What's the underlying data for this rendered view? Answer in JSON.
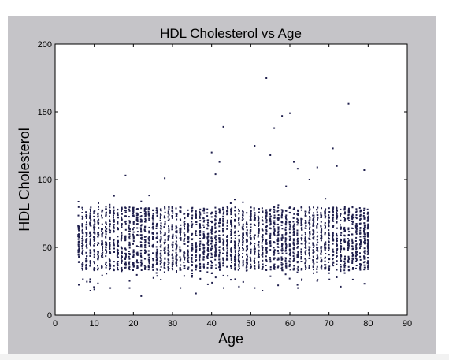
{
  "chart_data": {
    "type": "scatter",
    "title": "HDL Cholesterol vs Age",
    "xlabel": "Age",
    "ylabel": "HDL Cholesterol",
    "xlim": [
      0,
      90
    ],
    "ylim": [
      0,
      200
    ],
    "xticks": [
      "0",
      "10",
      "20",
      "30",
      "40",
      "50",
      "60",
      "70",
      "80",
      "90"
    ],
    "yticks": [
      "0",
      "50",
      "100",
      "150",
      "200"
    ],
    "grid": false,
    "marker_color": "#1f1f4d",
    "plot_background": "#ffffff",
    "figure_background": "#c5c4c8",
    "distribution_by_age": {
      "ages": [
        6,
        80
      ],
      "dense_range": [
        33,
        80
      ],
      "typical_median": 52,
      "max_typical": 95
    },
    "outliers": [
      {
        "x": 54,
        "y": 175
      },
      {
        "x": 75,
        "y": 156
      },
      {
        "x": 60,
        "y": 149
      },
      {
        "x": 58,
        "y": 147
      },
      {
        "x": 43,
        "y": 139
      },
      {
        "x": 56,
        "y": 138
      },
      {
        "x": 51,
        "y": 125
      },
      {
        "x": 71,
        "y": 123
      },
      {
        "x": 40,
        "y": 120
      },
      {
        "x": 55,
        "y": 118
      },
      {
        "x": 42,
        "y": 113
      },
      {
        "x": 61,
        "y": 113
      },
      {
        "x": 72,
        "y": 110
      },
      {
        "x": 67,
        "y": 109
      },
      {
        "x": 62,
        "y": 108
      },
      {
        "x": 79,
        "y": 107
      },
      {
        "x": 18,
        "y": 103
      },
      {
        "x": 41,
        "y": 104
      },
      {
        "x": 28,
        "y": 101
      },
      {
        "x": 65,
        "y": 100
      },
      {
        "x": 22,
        "y": 14
      },
      {
        "x": 9,
        "y": 18
      },
      {
        "x": 10,
        "y": 19
      },
      {
        "x": 36,
        "y": 16
      },
      {
        "x": 53,
        "y": 18
      },
      {
        "x": 47,
        "y": 21
      },
      {
        "x": 57,
        "y": 22
      },
      {
        "x": 73,
        "y": 21
      }
    ]
  }
}
